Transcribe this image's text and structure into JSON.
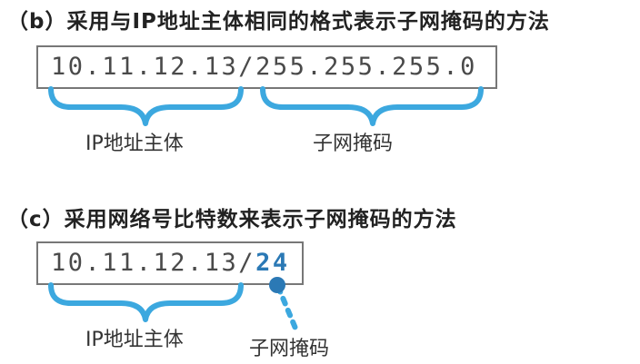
{
  "section_b": {
    "heading": "（b）采用与IP地址主体相同的格式表示子网掩码的方法",
    "address_host": "10.11.12.13/",
    "address_mask": "255.255.255.0",
    "label_host": "IP地址主体",
    "label_mask": "子网掩码"
  },
  "section_c": {
    "heading": "（c）采用网络号比特数来表示子网掩码的方法",
    "address_host": "10.11.12.13/",
    "address_prefix": "24",
    "label_host": "IP地址主体",
    "label_mask": "子网掩码"
  },
  "colors": {
    "accent": "#2b79b5",
    "brace": "#3ca8df",
    "border": "#777777",
    "text": "#222222"
  }
}
